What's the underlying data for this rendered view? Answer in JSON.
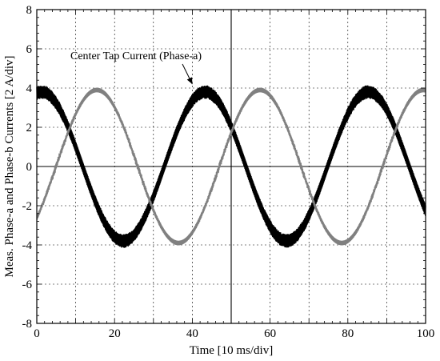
{
  "chart_data": {
    "type": "line",
    "title": "",
    "xlabel": "Time [10 ms/div]",
    "ylabel": "Meas. Phase-a and Phase-b Currents [2 A/div]",
    "xlim": [
      0,
      100
    ],
    "ylim": [
      -8,
      8
    ],
    "x_ticks": [
      0,
      20,
      40,
      60,
      80,
      100
    ],
    "y_ticks": [
      -8,
      -6,
      -4,
      -2,
      0,
      2,
      4,
      6,
      8
    ],
    "x_grid_step": 10,
    "y_grid_step": 2,
    "grid": true,
    "legend": "none",
    "series": [
      {
        "color": "#000000",
        "band_halfwidth": 0.25,
        "amplitude": 3.8,
        "period": 42,
        "phase": 1.38,
        "x": [
          0,
          10.5,
          21.5,
          32,
          43,
          53.5,
          64.5,
          75,
          85.5,
          96,
          100
        ],
        "y": [
          3.75,
          0,
          -3.8,
          0,
          3.8,
          0,
          -3.8,
          0,
          3.8,
          0,
          -3.0
        ]
      },
      {
        "color": "#808080",
        "band_halfwidth": 0.1,
        "amplitude": 3.9,
        "period": 42,
        "phase": -0.74,
        "x": [
          0,
          5.3,
          16,
          26.5,
          37,
          47.3,
          58,
          68.5,
          79,
          89.5,
          100
        ],
        "y": [
          -2.65,
          0,
          3.9,
          0,
          -3.9,
          0,
          3.9,
          0,
          -3.9,
          0,
          3.9
        ]
      }
    ],
    "annotations": [
      {
        "text": "Center Tap Current (Phase-a)",
        "target_x": 40,
        "target_y": 4.2
      }
    ]
  }
}
